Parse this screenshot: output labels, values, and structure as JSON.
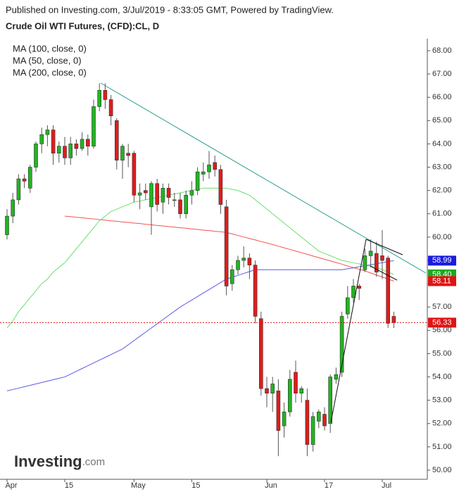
{
  "header": "Published on Investing.com, 3/Jul/2019 - 8:33:05 GMT, Powered by TradingView.",
  "logo": {
    "name": "Investing",
    "suffix": ".com"
  },
  "chart_data": {
    "type": "candlestick",
    "title": "Crude Oil WTI Futures, (CFD):CL, D",
    "categories": [
      "Apr",
      null,
      null,
      null,
      null,
      null,
      null,
      null,
      null,
      null,
      "15",
      null,
      null,
      null,
      null,
      null,
      null,
      null,
      null,
      null,
      null,
      null,
      "May",
      null,
      null,
      null,
      null,
      null,
      null,
      null,
      null,
      null,
      "15",
      null,
      null,
      null,
      null,
      null,
      null,
      null,
      null,
      null,
      null,
      null,
      null,
      "Jun",
      null,
      null,
      null,
      null,
      null,
      null,
      null,
      null,
      null,
      "17",
      null,
      null,
      null,
      null,
      null,
      null,
      null,
      null,
      null,
      "Jul",
      null,
      null
    ],
    "open": [
      60.1,
      60.9,
      61.6,
      62.5,
      62.1,
      63.0,
      64.0,
      64.4,
      64.6,
      63.6,
      63.9,
      63.4,
      64.0,
      63.8,
      64.2,
      63.9,
      65.6,
      66.3,
      65.9,
      65.0,
      63.3,
      63.6,
      63.6,
      61.8,
      62.0,
      61.3,
      62.3,
      61.5,
      62.1,
      61.6,
      61.6,
      61.0,
      61.8,
      62.0,
      62.7,
      62.8,
      63.2,
      62.9,
      61.3,
      58.0,
      58.6,
      59.0,
      59.1,
      58.8,
      56.5,
      53.5,
      53.3,
      53.4,
      51.9,
      52.5,
      54.2,
      53.3,
      53.0,
      51.1,
      52.1,
      52.4,
      52.0,
      53.9,
      54.2,
      56.7,
      57.4,
      57.9,
      58.6,
      59.2,
      59.3,
      59.2,
      59.1,
      56.6
    ],
    "high": [
      61.2,
      61.9,
      62.7,
      62.7,
      63.1,
      64.1,
      64.7,
      64.8,
      64.8,
      64.1,
      64.3,
      64.3,
      64.2,
      64.5,
      64.4,
      65.9,
      66.6,
      66.6,
      66.1,
      65.1,
      64.0,
      64.0,
      63.7,
      62.3,
      62.3,
      62.4,
      62.5,
      62.3,
      62.3,
      61.9,
      61.9,
      62.0,
      62.4,
      63.0,
      63.2,
      63.7,
      63.5,
      63.1,
      61.6,
      58.8,
      59.2,
      59.6,
      59.3,
      59.0,
      56.8,
      54.0,
      54.0,
      53.9,
      52.9,
      54.3,
      54.7,
      53.6,
      53.5,
      52.5,
      52.6,
      52.7,
      54.1,
      54.4,
      56.8,
      57.9,
      58.2,
      58.0,
      59.5,
      59.9,
      59.8,
      60.3,
      59.2,
      56.8
    ],
    "low": [
      59.9,
      60.6,
      61.4,
      62.1,
      61.9,
      62.8,
      63.6,
      63.9,
      63.1,
      63.2,
      63.1,
      63.1,
      63.5,
      63.7,
      63.5,
      63.8,
      65.4,
      65.5,
      64.8,
      62.9,
      62.5,
      63.0,
      61.5,
      61.2,
      61.6,
      60.1,
      61.1,
      61.0,
      61.4,
      61.3,
      60.8,
      60.8,
      61.4,
      61.8,
      62.4,
      62.5,
      62.6,
      61.0,
      57.5,
      57.7,
      58.4,
      58.7,
      58.2,
      56.3,
      53.2,
      52.7,
      52.5,
      50.6,
      51.4,
      52.3,
      52.9,
      52.9,
      50.6,
      50.8,
      51.8,
      51.7,
      51.6,
      53.7,
      54.0,
      56.5,
      57.2,
      57.3,
      58.5,
      58.7,
      58.3,
      58.2,
      56.1,
      56.1
    ],
    "close": [
      60.9,
      61.6,
      62.5,
      62.4,
      63.0,
      64.0,
      64.4,
      64.6,
      63.6,
      63.9,
      63.4,
      64.0,
      63.8,
      64.2,
      63.9,
      65.6,
      66.3,
      65.9,
      65.2,
      63.3,
      63.9,
      63.5,
      61.8,
      61.9,
      61.9,
      62.3,
      61.4,
      62.1,
      61.7,
      61.6,
      61.0,
      61.8,
      62.0,
      62.8,
      62.8,
      63.1,
      62.9,
      61.4,
      57.9,
      58.6,
      59.0,
      59.1,
      58.8,
      56.6,
      53.5,
      53.3,
      53.7,
      51.7,
      52.5,
      53.9,
      53.3,
      53.5,
      51.1,
      52.3,
      52.5,
      51.9,
      54.0,
      54.1,
      56.6,
      57.4,
      57.9,
      57.8,
      59.2,
      59.4,
      58.5,
      59.0,
      56.3,
      56.33
    ],
    "up_color": "#22b422",
    "down_color": "#e01c1c",
    "series": [
      {
        "name": "MA (100, close, 0)",
        "color": "#f0544c",
        "values": [
          null,
          null,
          null,
          null,
          null,
          null,
          null,
          null,
          null,
          null,
          60.9,
          60.88,
          60.85,
          60.83,
          60.8,
          60.78,
          60.75,
          60.73,
          60.7,
          60.68,
          60.65,
          60.63,
          60.6,
          60.58,
          60.55,
          60.53,
          60.5,
          60.48,
          60.45,
          60.43,
          60.4,
          60.38,
          60.35,
          60.33,
          60.3,
          60.28,
          60.25,
          60.23,
          60.2,
          60.14,
          60.07,
          60.01,
          59.94,
          59.88,
          59.81,
          59.75,
          59.68,
          59.61,
          59.54,
          59.47,
          59.4,
          59.33,
          59.26,
          59.19,
          59.12,
          59.05,
          58.98,
          58.91,
          58.84,
          58.76,
          58.69,
          58.62,
          58.55,
          58.46,
          58.37,
          58.29,
          58.2,
          58.11
        ]
      },
      {
        "name": "MA (50, close, 0)",
        "color": "#6be06b",
        "values": [
          56.1,
          56.4,
          56.8,
          57.1,
          57.4,
          57.7,
          58.0,
          58.2,
          58.5,
          58.7,
          58.9,
          59.2,
          59.5,
          59.8,
          60.1,
          60.4,
          60.7,
          60.9,
          61.1,
          61.2,
          61.3,
          61.4,
          61.5,
          61.55,
          61.6,
          61.65,
          61.7,
          61.75,
          61.8,
          61.85,
          61.9,
          61.95,
          62.0,
          62.05,
          62.1,
          62.1,
          62.1,
          62.1,
          62.1,
          62.05,
          62.0,
          61.9,
          61.8,
          61.6,
          61.4,
          61.2,
          61.0,
          60.8,
          60.6,
          60.4,
          60.2,
          60.0,
          59.8,
          59.6,
          59.4,
          59.3,
          59.2,
          59.1,
          59.0,
          58.95,
          58.9,
          58.85,
          58.8,
          58.75,
          58.7,
          58.6,
          58.5,
          58.4
        ]
      },
      {
        "name": "MA (200, close, 0)",
        "color": "#5a5ae6",
        "values": [
          53.4,
          53.46,
          53.52,
          53.58,
          53.64,
          53.7,
          53.76,
          53.82,
          53.88,
          53.94,
          54.0,
          54.12,
          54.24,
          54.36,
          54.48,
          54.6,
          54.72,
          54.84,
          54.96,
          55.08,
          55.2,
          55.38,
          55.56,
          55.74,
          55.92,
          56.1,
          56.28,
          56.46,
          56.64,
          56.82,
          57.0,
          57.15,
          57.3,
          57.45,
          57.6,
          57.75,
          57.9,
          58.05,
          58.2,
          58.28,
          58.36,
          58.44,
          58.52,
          58.6,
          58.6,
          58.6,
          58.6,
          58.6,
          58.6,
          58.6,
          58.6,
          58.6,
          58.6,
          58.6,
          58.6,
          58.6,
          58.6,
          58.6,
          58.6,
          58.64,
          58.68,
          58.73,
          58.77,
          58.81,
          58.86,
          58.9,
          58.95,
          58.99
        ]
      }
    ],
    "price_labels": [
      {
        "value": 58.99,
        "label": "58.99",
        "color": "#1c1ce0"
      },
      {
        "value": 58.4,
        "label": "58.40",
        "color": "#1fa81f"
      },
      {
        "value": 58.11,
        "label": "58.11",
        "color": "#e01414"
      },
      {
        "value": 56.33,
        "label": "56.33",
        "color": "#e01414"
      }
    ],
    "ylim": [
      49.6,
      68.4
    ],
    "yticks": [
      {
        "value": 50,
        "label": "50.00"
      },
      {
        "value": 51,
        "label": "51.00"
      },
      {
        "value": 52,
        "label": "52.00"
      },
      {
        "value": 53,
        "label": "53.00"
      },
      {
        "value": 54,
        "label": "54.00"
      },
      {
        "value": 55,
        "label": "55.00"
      },
      {
        "value": 56,
        "label": "56.00"
      },
      {
        "value": 57,
        "label": "57.00"
      },
      {
        "value": 58,
        "label": "58.00"
      },
      {
        "value": 59,
        "label": "59.00"
      },
      {
        "value": 60,
        "label": "60.00"
      },
      {
        "value": 61,
        "label": "61.00"
      },
      {
        "value": 62,
        "label": "62.00"
      },
      {
        "value": 63,
        "label": "63.00"
      },
      {
        "value": 64,
        "label": "64.00"
      },
      {
        "value": 65,
        "label": "65.00"
      },
      {
        "value": 66,
        "label": "66.00"
      },
      {
        "value": 67,
        "label": "67.00"
      },
      {
        "value": 68,
        "label": "68.00"
      }
    ]
  }
}
